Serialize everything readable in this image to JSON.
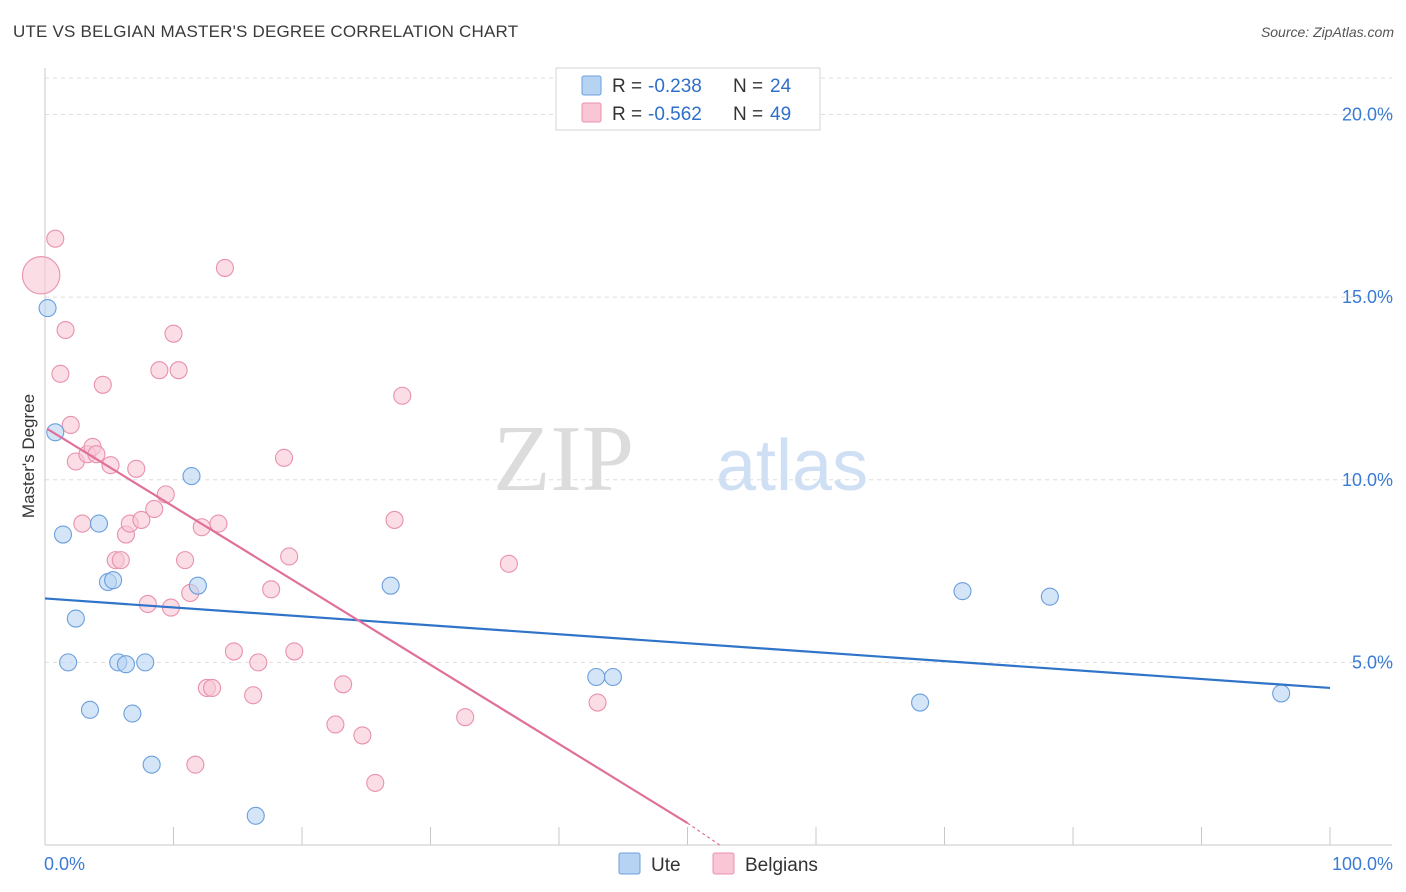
{
  "header": {
    "title": "UTE VS BELGIAN MASTER'S DEGREE CORRELATION CHART",
    "source": "Source: ZipAtlas.com"
  },
  "watermark": {
    "part1": "ZIP",
    "part2": "atlas"
  },
  "legend_top": {
    "rows": [
      {
        "r_label": "R = ",
        "r_value": "-0.238",
        "n_label": "N = ",
        "n_value": "24"
      },
      {
        "r_label": "R = ",
        "r_value": "-0.562",
        "n_label": "N = ",
        "n_value": "49"
      }
    ]
  },
  "colors": {
    "ute_fill": "#b7d3f4",
    "ute_stroke": "#6b9fdd",
    "ute_line": "#2f74c8",
    "bel_fill": "#f9c6d6",
    "bel_stroke": "#e991ae",
    "bel_line": "#e0709a",
    "value_text": "#2f6fc9",
    "grid": "#dddddd",
    "axis_text": "#3a7bd5"
  },
  "chart_data": {
    "type": "scatter",
    "title": "UTE VS BELGIAN MASTER'S DEGREE CORRELATION CHART",
    "xlabel": "",
    "ylabel": "Master's Degree",
    "xlim": [
      0,
      100
    ],
    "ylim": [
      0,
      21
    ],
    "x_tick_labels": [
      "0.0%",
      "100.0%"
    ],
    "y_ticks": [
      5,
      10,
      15,
      20
    ],
    "y_tick_labels": [
      "5.0%",
      "10.0%",
      "15.0%",
      "20.0%"
    ],
    "grid": true,
    "legend_placement": "bottom-center",
    "series": [
      {
        "name": "Ute",
        "r": -0.238,
        "n": 24,
        "trend": {
          "x": [
            0,
            100
          ],
          "y": [
            6.75,
            4.3
          ]
        },
        "points": [
          {
            "x": 0.2,
            "y": 14.7,
            "s": 1
          },
          {
            "x": 0.8,
            "y": 11.3,
            "s": 1
          },
          {
            "x": 1.4,
            "y": 8.5,
            "s": 1
          },
          {
            "x": 1.8,
            "y": 5.0,
            "s": 1
          },
          {
            "x": 2.4,
            "y": 6.2,
            "s": 1
          },
          {
            "x": 3.5,
            "y": 3.7,
            "s": 1
          },
          {
            "x": 4.2,
            "y": 8.8,
            "s": 1
          },
          {
            "x": 4.9,
            "y": 7.2,
            "s": 1
          },
          {
            "x": 5.3,
            "y": 7.25,
            "s": 1
          },
          {
            "x": 5.7,
            "y": 5.0,
            "s": 1
          },
          {
            "x": 6.3,
            "y": 4.95,
            "s": 1
          },
          {
            "x": 6.8,
            "y": 3.6,
            "s": 1
          },
          {
            "x": 7.8,
            "y": 5.0,
            "s": 1
          },
          {
            "x": 8.3,
            "y": 2.2,
            "s": 1
          },
          {
            "x": 11.4,
            "y": 10.1,
            "s": 1
          },
          {
            "x": 11.9,
            "y": 7.1,
            "s": 1
          },
          {
            "x": 16.4,
            "y": 0.8,
            "s": 1
          },
          {
            "x": 26.9,
            "y": 7.1,
            "s": 1
          },
          {
            "x": 42.9,
            "y": 4.6,
            "s": 1
          },
          {
            "x": 44.2,
            "y": 4.6,
            "s": 1
          },
          {
            "x": 68.1,
            "y": 3.9,
            "s": 1
          },
          {
            "x": 71.4,
            "y": 6.95,
            "s": 1
          },
          {
            "x": 78.2,
            "y": 6.8,
            "s": 1
          },
          {
            "x": 96.2,
            "y": 4.15,
            "s": 1
          }
        ]
      },
      {
        "name": "Belgians",
        "r": -0.562,
        "n": 49,
        "trend": {
          "x": [
            0,
            50
          ],
          "y": [
            11.4,
            0.6
          ]
        },
        "trend_dashed": {
          "x": [
            50,
            52.5
          ],
          "y": [
            0.6,
            0.0
          ]
        },
        "points": [
          {
            "x": -0.3,
            "y": 15.6,
            "s": 2.2
          },
          {
            "x": 0.8,
            "y": 16.6,
            "s": 1
          },
          {
            "x": 1.2,
            "y": 12.9,
            "s": 1
          },
          {
            "x": 1.6,
            "y": 14.1,
            "s": 1
          },
          {
            "x": 2.0,
            "y": 11.5,
            "s": 1
          },
          {
            "x": 2.4,
            "y": 10.5,
            "s": 1
          },
          {
            "x": 2.9,
            "y": 8.8,
            "s": 1
          },
          {
            "x": 3.3,
            "y": 10.7,
            "s": 1
          },
          {
            "x": 3.7,
            "y": 10.9,
            "s": 1
          },
          {
            "x": 4.0,
            "y": 10.7,
            "s": 1
          },
          {
            "x": 4.5,
            "y": 12.6,
            "s": 1
          },
          {
            "x": 5.1,
            "y": 10.4,
            "s": 1
          },
          {
            "x": 5.5,
            "y": 7.8,
            "s": 1
          },
          {
            "x": 5.9,
            "y": 7.8,
            "s": 1
          },
          {
            "x": 6.3,
            "y": 8.5,
            "s": 1
          },
          {
            "x": 6.6,
            "y": 8.8,
            "s": 1
          },
          {
            "x": 7.1,
            "y": 10.3,
            "s": 1
          },
          {
            "x": 7.5,
            "y": 8.9,
            "s": 1
          },
          {
            "x": 8.0,
            "y": 6.6,
            "s": 1
          },
          {
            "x": 8.5,
            "y": 9.2,
            "s": 1
          },
          {
            "x": 8.9,
            "y": 13.0,
            "s": 1
          },
          {
            "x": 9.4,
            "y": 9.6,
            "s": 1
          },
          {
            "x": 9.8,
            "y": 6.5,
            "s": 1
          },
          {
            "x": 10.0,
            "y": 14.0,
            "s": 1
          },
          {
            "x": 10.4,
            "y": 13.0,
            "s": 1
          },
          {
            "x": 10.9,
            "y": 7.8,
            "s": 1
          },
          {
            "x": 11.3,
            "y": 6.9,
            "s": 1
          },
          {
            "x": 11.7,
            "y": 2.2,
            "s": 1
          },
          {
            "x": 12.2,
            "y": 8.7,
            "s": 1
          },
          {
            "x": 12.6,
            "y": 4.3,
            "s": 1
          },
          {
            "x": 13.0,
            "y": 4.3,
            "s": 1
          },
          {
            "x": 13.5,
            "y": 8.8,
            "s": 1
          },
          {
            "x": 14.0,
            "y": 15.8,
            "s": 1
          },
          {
            "x": 14.7,
            "y": 5.3,
            "s": 1
          },
          {
            "x": 16.2,
            "y": 4.1,
            "s": 1
          },
          {
            "x": 16.6,
            "y": 5.0,
            "s": 1
          },
          {
            "x": 17.6,
            "y": 7.0,
            "s": 1
          },
          {
            "x": 18.6,
            "y": 10.6,
            "s": 1
          },
          {
            "x": 19.0,
            "y": 7.9,
            "s": 1
          },
          {
            "x": 19.4,
            "y": 5.3,
            "s": 1
          },
          {
            "x": 22.6,
            "y": 3.3,
            "s": 1
          },
          {
            "x": 23.2,
            "y": 4.4,
            "s": 1
          },
          {
            "x": 24.7,
            "y": 3.0,
            "s": 1
          },
          {
            "x": 25.7,
            "y": 1.7,
            "s": 1
          },
          {
            "x": 27.8,
            "y": 12.3,
            "s": 1
          },
          {
            "x": 27.2,
            "y": 8.9,
            "s": 1
          },
          {
            "x": 32.7,
            "y": 3.5,
            "s": 1
          },
          {
            "x": 36.1,
            "y": 7.7,
            "s": 1
          },
          {
            "x": 43.0,
            "y": 3.9,
            "s": 1
          }
        ]
      }
    ]
  }
}
